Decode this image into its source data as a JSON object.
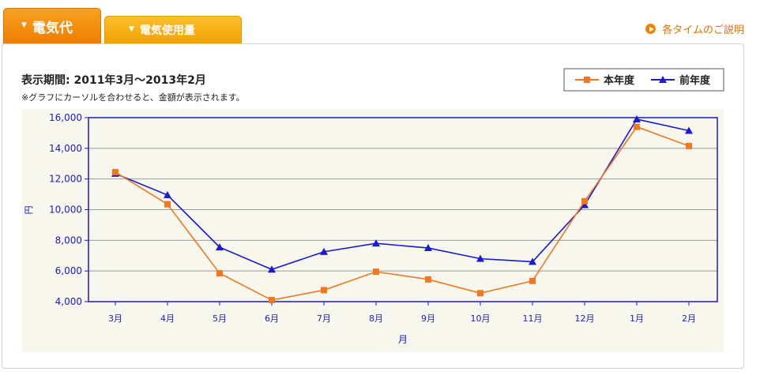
{
  "tabs": [
    {
      "label": "電気代",
      "marker": "▼"
    },
    {
      "label": "電気使用量",
      "marker": "▼"
    }
  ],
  "help_link": {
    "label": "各タイムのご説明",
    "icon": "play-circle-icon"
  },
  "period": {
    "text": "表示期間: 2011年3月〜2013年2月"
  },
  "note": {
    "text": "※グラフにカーソルを合わせると、金額が表示されます。"
  },
  "colors": {
    "tab_active": "#ef7d00",
    "tab_inactive": "#f4a100",
    "this_year": "#f07820",
    "last_year": "#1a1ad0",
    "axis_text": "#1a1ad0",
    "plot_background": "#f7f7ee"
  },
  "chart_data": {
    "type": "line",
    "categories": [
      "3月",
      "4月",
      "5月",
      "6月",
      "7月",
      "8月",
      "9月",
      "10月",
      "11月",
      "12月",
      "1月",
      "2月"
    ],
    "series": [
      {
        "name": "本年度",
        "marker": "square",
        "values": [
          12450,
          10350,
          5850,
          4100,
          4750,
          5950,
          5450,
          4550,
          5350,
          10550,
          15400,
          14150
        ]
      },
      {
        "name": "前年度",
        "marker": "triangle",
        "values": [
          12350,
          10950,
          7550,
          6100,
          7250,
          7800,
          7500,
          6800,
          6600,
          10300,
          15900,
          15150
        ]
      }
    ],
    "xlabel": "月",
    "ylabel": "円",
    "ylim": [
      4000,
      16000
    ],
    "yticks": [
      4000,
      6000,
      8000,
      10000,
      12000,
      14000,
      16000
    ],
    "ytick_labels": [
      "4,000",
      "6,000",
      "8,000",
      "10,000",
      "12,000",
      "14,000",
      "16,000"
    ],
    "grid": true,
    "legend_position": "top-right"
  }
}
